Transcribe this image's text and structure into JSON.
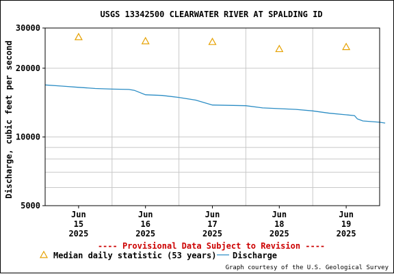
{
  "chart_data": {
    "type": "line",
    "title": "USGS 13342500 CLEARWATER RIVER AT SPALDING ID",
    "ylabel": "Discharge, cubic feet per second",
    "y_scale": "log",
    "ylim": [
      5000,
      30000
    ],
    "y_ticks": [
      5000,
      10000,
      20000,
      30000
    ],
    "y_tick_labels": [
      "5000",
      "10000",
      "20000",
      "30000"
    ],
    "y_minor_ticks": [
      6000,
      7000,
      8000,
      9000
    ],
    "x_range": [
      "2025-06-14 12:00",
      "2025-06-19 12:00"
    ],
    "x_ticks": [
      {
        "date": "2025-06-15 00:00",
        "label": [
          "Jun",
          "15",
          "2025"
        ]
      },
      {
        "date": "2025-06-16 00:00",
        "label": [
          "Jun",
          "16",
          "2025"
        ]
      },
      {
        "date": "2025-06-17 00:00",
        "label": [
          "Jun",
          "17",
          "2025"
        ]
      },
      {
        "date": "2025-06-18 00:00",
        "label": [
          "Jun",
          "18",
          "2025"
        ]
      },
      {
        "date": "2025-06-19 00:00",
        "label": [
          "Jun",
          "19",
          "2025"
        ]
      }
    ],
    "grid": true,
    "series": [
      {
        "name": "Discharge",
        "kind": "line",
        "color": "#2a8cc4",
        "points": [
          [
            "2025-06-14 12:00",
            16900
          ],
          [
            "2025-06-14 18:00",
            16700
          ],
          [
            "2025-06-15 00:00",
            16500
          ],
          [
            "2025-06-15 06:00",
            16300
          ],
          [
            "2025-06-15 12:00",
            16200
          ],
          [
            "2025-06-15 18:00",
            16150
          ],
          [
            "2025-06-15 20:00",
            16000
          ],
          [
            "2025-06-16 00:00",
            15300
          ],
          [
            "2025-06-16 06:00",
            15200
          ],
          [
            "2025-06-16 12:00",
            14900
          ],
          [
            "2025-06-16 18:00",
            14500
          ],
          [
            "2025-06-17 00:00",
            13800
          ],
          [
            "2025-06-17 06:00",
            13750
          ],
          [
            "2025-06-17 12:00",
            13700
          ],
          [
            "2025-06-17 18:00",
            13400
          ],
          [
            "2025-06-18 00:00",
            13300
          ],
          [
            "2025-06-18 06:00",
            13200
          ],
          [
            "2025-06-18 12:00",
            13000
          ],
          [
            "2025-06-18 18:00",
            12700
          ],
          [
            "2025-06-19 00:00",
            12500
          ],
          [
            "2025-06-19 03:00",
            12400
          ],
          [
            "2025-06-19 04:00",
            12000
          ],
          [
            "2025-06-19 06:00",
            11750
          ],
          [
            "2025-06-19 12:00",
            11600
          ],
          [
            "2025-06-19 14:00",
            11500
          ]
        ]
      },
      {
        "name": "Median daily statistic (53 years)",
        "kind": "marker",
        "color": "#e6a100",
        "points": [
          [
            "2025-06-15 00:00",
            27400
          ],
          [
            "2025-06-16 00:00",
            26300
          ],
          [
            "2025-06-17 00:00",
            26100
          ],
          [
            "2025-06-18 00:00",
            24300
          ],
          [
            "2025-06-19 00:00",
            24800
          ]
        ]
      }
    ]
  },
  "provisional_note": "---- Provisional Data Subject to Revision ----",
  "provisional_color": "#cc0000",
  "legend": {
    "median_label": "Median daily statistic (53 years)",
    "discharge_label": "Discharge"
  },
  "credit": "Graph courtesy of the U.S. Geological Survey"
}
